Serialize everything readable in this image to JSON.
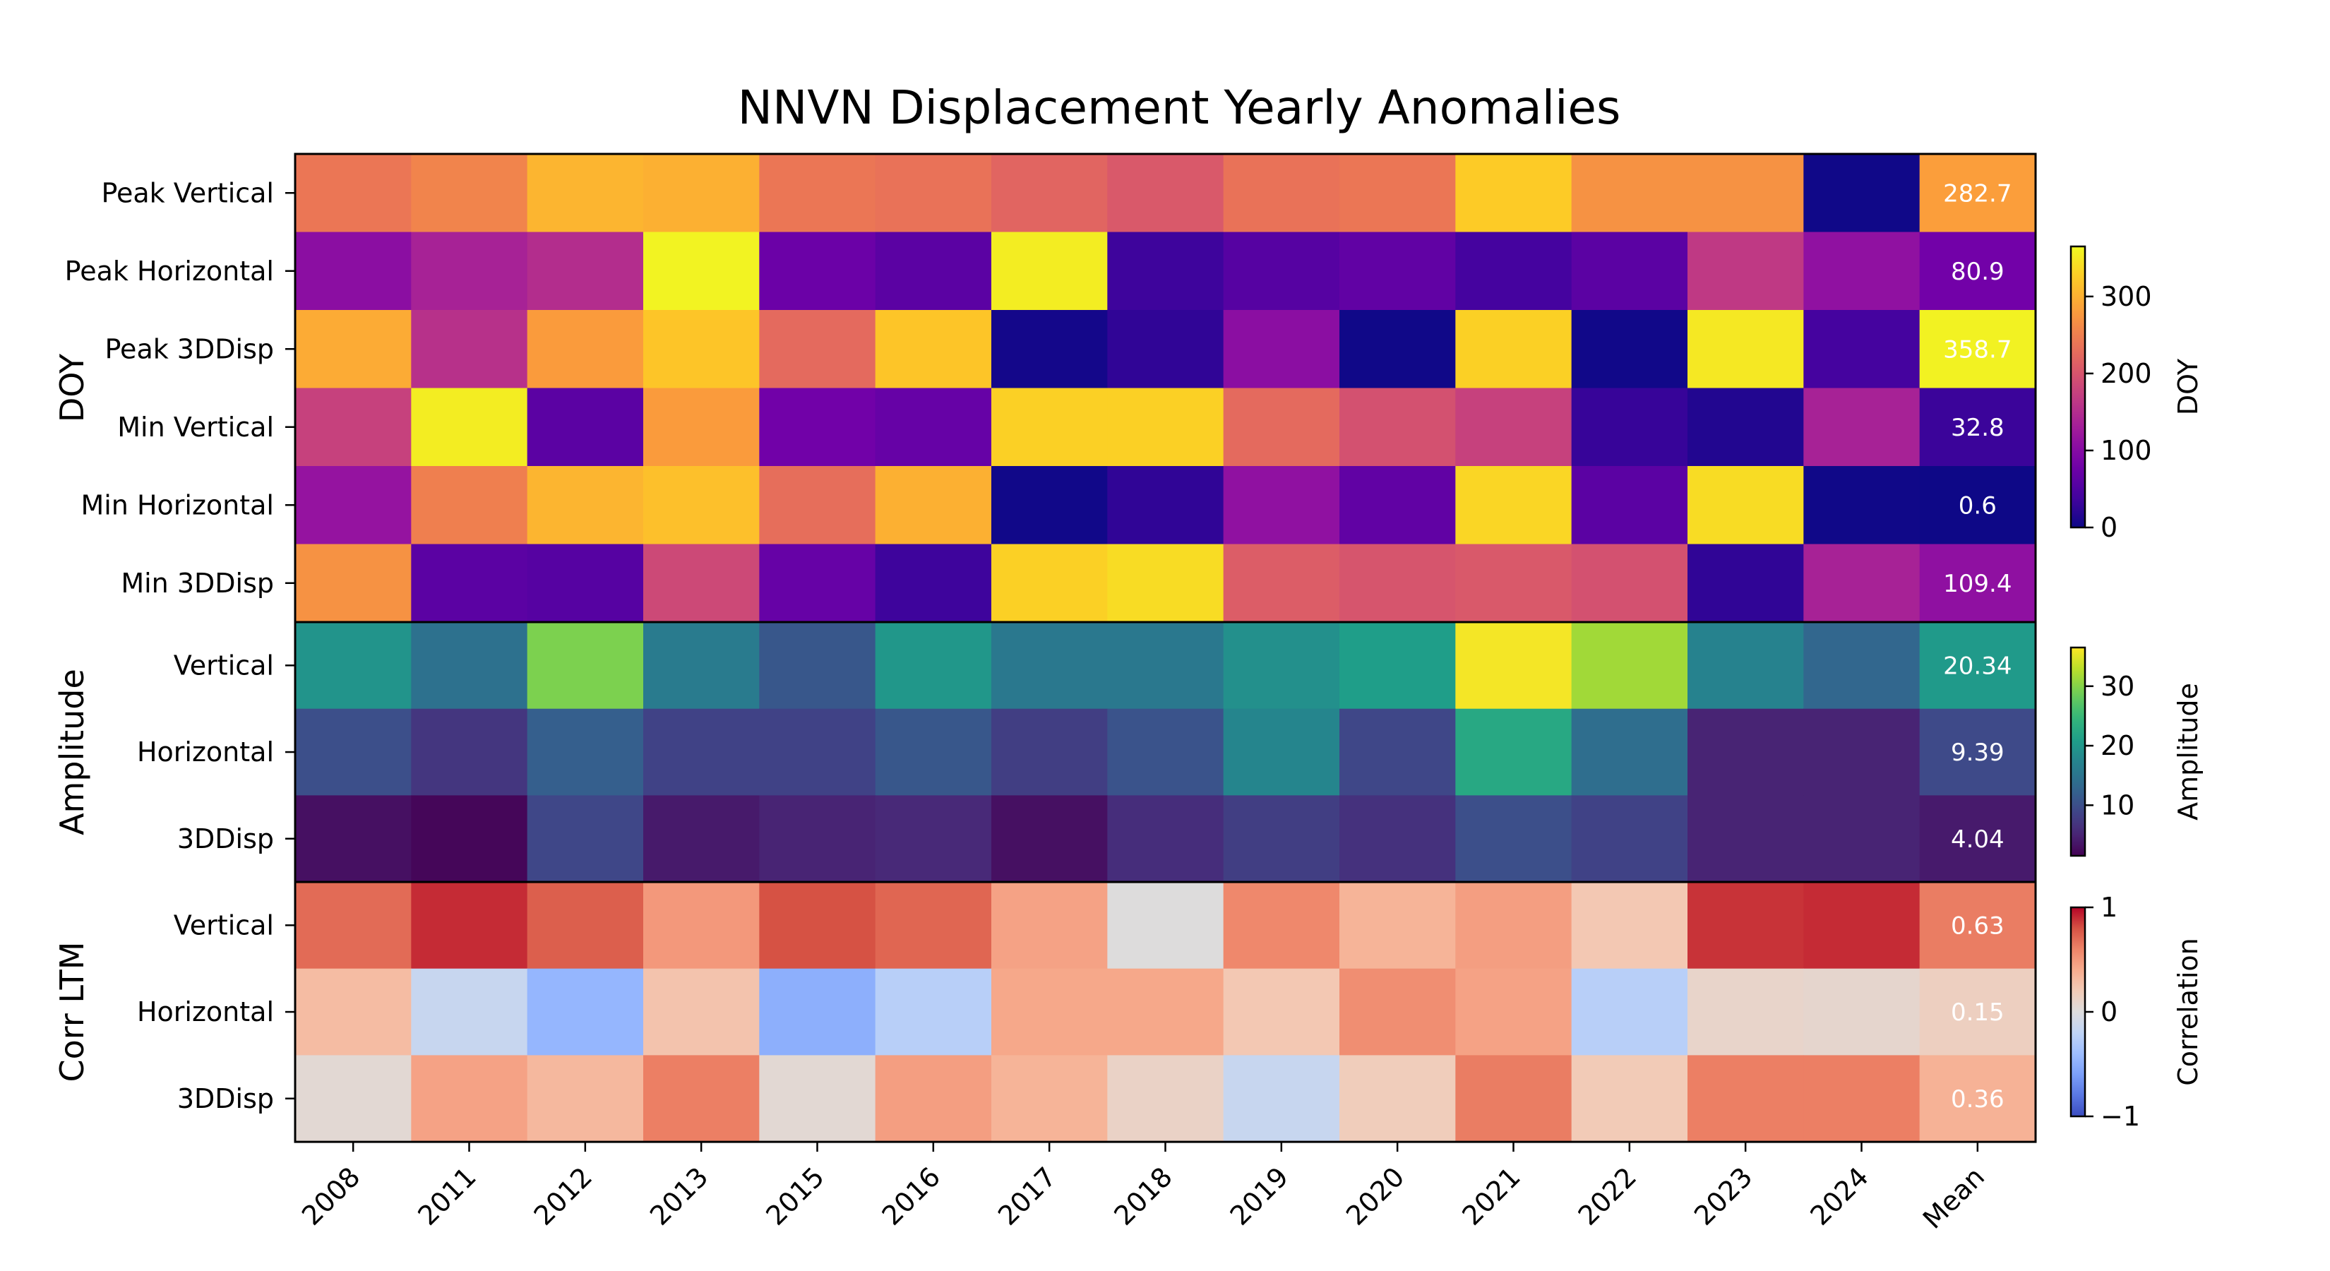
{
  "chart_data": {
    "type": "heatmap",
    "title": "NNVN Displacement Yearly Anomalies",
    "columns": [
      "2008",
      "2011",
      "2012",
      "2013",
      "2015",
      "2016",
      "2017",
      "2018",
      "2019",
      "2020",
      "2021",
      "2022",
      "2023",
      "2024",
      "Mean"
    ],
    "panels": [
      {
        "group_label": "DOY",
        "rows": [
          "Peak Vertical",
          "Peak Horizontal",
          "Peak 3DDisp",
          "Min Vertical",
          "Min Horizontal",
          "Min 3DDisp"
        ],
        "colormap": "plasma",
        "vmin": 0,
        "vmax": 365,
        "colorbar": {
          "label": "DOY",
          "ticks": [
            0,
            100,
            200,
            300
          ]
        },
        "values": [
          [
            240,
            255,
            305,
            300,
            240,
            235,
            220,
            205,
            235,
            240,
            325,
            270,
            270,
            2,
            282.7
          ],
          [
            105,
            135,
            150,
            360,
            75,
            60,
            355,
            35,
            55,
            65,
            40,
            60,
            165,
            110,
            80.9
          ],
          [
            295,
            155,
            280,
            320,
            225,
            320,
            5,
            25,
            105,
            2,
            330,
            3,
            350,
            40,
            358.7
          ],
          [
            175,
            355,
            60,
            280,
            80,
            70,
            330,
            330,
            225,
            195,
            175,
            30,
            15,
            135,
            32.8
          ],
          [
            115,
            250,
            305,
            315,
            230,
            300,
            3,
            25,
            110,
            65,
            335,
            60,
            340,
            2,
            0.6
          ],
          [
            270,
            60,
            55,
            185,
            70,
            35,
            330,
            340,
            210,
            200,
            205,
            195,
            25,
            135,
            109.4
          ]
        ],
        "labels": [
          "",
          "",
          "",
          "",
          "",
          "",
          "",
          "",
          "",
          "",
          "",
          "",
          "",
          "",
          "282.7",
          "",
          "",
          "",
          "",
          "",
          "",
          "",
          "",
          "",
          "",
          "",
          "",
          "",
          "",
          "80.9",
          "",
          "",
          "",
          "",
          "",
          "",
          "",
          "",
          "",
          "",
          "",
          "",
          "",
          "",
          "358.7",
          "",
          "",
          "",
          "",
          "",
          "",
          "",
          "",
          "",
          "",
          "",
          "",
          "",
          "",
          "32.8",
          "",
          "",
          "",
          "",
          "",
          "",
          "",
          "",
          "",
          "",
          "",
          "",
          "",
          "",
          "0.6",
          "",
          "",
          "",
          "",
          "",
          "",
          "",
          "",
          "",
          "",
          "",
          "",
          "",
          "",
          "109.4"
        ]
      },
      {
        "group_label": "Amplitude",
        "rows": [
          "Vertical",
          "Horizontal",
          "3DDisp"
        ],
        "colormap": "viridis",
        "vmin": 1.5,
        "vmax": 36.5,
        "colorbar": {
          "label": "Amplitude",
          "ticks": [
            10,
            20,
            30
          ]
        },
        "values": [
          [
            19.5,
            14.5,
            29.5,
            16,
            11,
            20,
            15.5,
            15.5,
            19,
            21,
            36,
            31.5,
            17,
            13,
            20.34
          ],
          [
            10,
            7,
            12,
            8.5,
            8.5,
            11,
            8,
            10.5,
            17.5,
            9,
            22.5,
            14,
            5,
            5,
            9.39
          ],
          [
            3,
            2,
            9,
            4,
            5,
            5.5,
            3,
            6,
            8,
            6.5,
            10,
            8.5,
            5,
            5,
            4.04
          ]
        ]
      },
      {
        "group_label": "Corr LTM",
        "rows": [
          "Vertical",
          "Horizontal",
          "3DDisp"
        ],
        "colormap": "coolwarm",
        "vmin": -1,
        "vmax": 1,
        "colorbar": {
          "label": "Correlation",
          "ticks": [
            -1,
            0,
            1
          ]
        },
        "values": [
          [
            0.7,
            0.9,
            0.75,
            0.5,
            0.8,
            0.72,
            0.45,
            0.0,
            0.58,
            0.35,
            0.47,
            0.22,
            0.88,
            0.9,
            0.63
          ],
          [
            0.3,
            -0.15,
            -0.45,
            0.25,
            -0.5,
            -0.25,
            0.42,
            0.42,
            0.22,
            0.55,
            0.45,
            -0.25,
            0.1,
            0.08,
            0.15
          ],
          [
            0.05,
            0.45,
            0.32,
            0.62,
            0.05,
            0.47,
            0.35,
            0.12,
            -0.15,
            0.18,
            0.63,
            0.2,
            0.62,
            0.62,
            0.36
          ]
        ]
      }
    ],
    "mean_labels": {
      "doy": [
        "282.7",
        "80.9",
        "358.7",
        "32.8",
        "0.6",
        "109.4"
      ],
      "amplitude": [
        "20.34",
        "9.39",
        "4.04"
      ],
      "corr": [
        "0.63",
        "0.15",
        "0.36"
      ]
    }
  }
}
